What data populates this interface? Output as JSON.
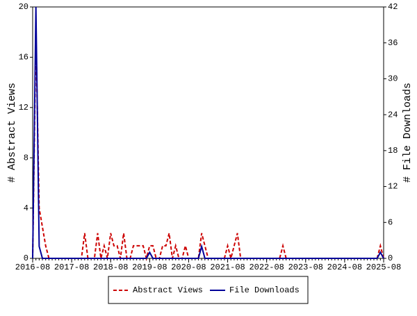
{
  "chart_data": {
    "type": "line",
    "x": [
      "2016-08",
      "2016-09",
      "2016-10",
      "2016-11",
      "2016-12",
      "2017-01",
      "2017-02",
      "2017-03",
      "2017-04",
      "2017-05",
      "2017-06",
      "2017-07",
      "2017-08",
      "2017-09",
      "2017-10",
      "2017-11",
      "2017-12",
      "2018-01",
      "2018-02",
      "2018-03",
      "2018-04",
      "2018-05",
      "2018-06",
      "2018-07",
      "2018-08",
      "2018-09",
      "2018-10",
      "2018-11",
      "2018-12",
      "2019-01",
      "2019-02",
      "2019-03",
      "2019-04",
      "2019-05",
      "2019-06",
      "2019-07",
      "2019-08",
      "2019-09",
      "2019-10",
      "2019-11",
      "2019-12",
      "2020-01",
      "2020-02",
      "2020-03",
      "2020-04",
      "2020-05",
      "2020-06",
      "2020-07",
      "2020-08",
      "2020-09",
      "2020-10",
      "2020-11",
      "2020-12",
      "2021-01",
      "2021-02",
      "2021-03",
      "2021-04",
      "2021-05",
      "2021-06",
      "2021-07",
      "2021-08",
      "2021-09",
      "2021-10",
      "2021-11",
      "2021-12",
      "2022-01",
      "2022-02",
      "2022-03",
      "2022-04",
      "2022-05",
      "2022-06",
      "2022-07",
      "2022-08",
      "2022-09",
      "2022-10",
      "2022-11",
      "2022-12",
      "2023-01",
      "2023-02",
      "2023-03",
      "2023-04",
      "2023-05",
      "2023-06",
      "2023-07",
      "2023-08",
      "2023-09",
      "2023-10",
      "2023-11",
      "2023-12",
      "2024-01",
      "2024-02",
      "2024-03",
      "2024-04",
      "2024-05",
      "2024-06",
      "2024-07",
      "2024-08",
      "2024-09",
      "2024-10",
      "2024-11",
      "2024-12",
      "2025-01",
      "2025-02",
      "2025-03",
      "2025-04",
      "2025-05",
      "2025-06",
      "2025-07",
      "2025-08"
    ],
    "xticks": [
      "2016-08",
      "2017-08",
      "2018-08",
      "2019-08",
      "2020-08",
      "2021-08",
      "2022-08",
      "2023-08",
      "2024-08",
      "2025-08"
    ],
    "ylabel": "# Abstract Views",
    "y2label": "# File Downloads",
    "ylim": [
      0,
      20
    ],
    "yticks": [
      0,
      4,
      8,
      12,
      16,
      20
    ],
    "y2lim": [
      0,
      42
    ],
    "y2ticks": [
      0,
      6,
      12,
      18,
      24,
      30,
      36,
      42
    ],
    "series": [
      {
        "name": "Abstract Views",
        "color": "#cc0000",
        "dashed": true,
        "values": [
          0,
          18,
          4,
          2.5,
          1,
          0,
          0,
          0,
          0,
          0,
          0,
          0,
          0,
          0,
          0,
          0,
          2,
          0,
          0,
          0,
          2,
          0,
          1,
          0,
          2,
          1,
          1,
          0,
          2,
          0,
          0,
          1,
          1,
          1,
          1,
          0,
          1,
          1,
          0,
          0,
          1,
          1,
          2,
          0,
          1,
          0,
          0,
          1,
          0,
          0,
          0,
          0,
          2,
          1,
          0,
          0,
          0,
          0,
          0,
          0,
          1,
          0,
          1,
          2,
          0,
          0,
          0,
          0,
          0,
          0,
          0,
          0,
          0,
          0,
          0,
          0,
          0,
          1,
          0,
          0,
          0,
          0,
          0,
          0,
          0,
          0,
          0,
          0,
          0,
          0,
          0,
          0,
          0,
          0,
          0,
          0,
          0,
          0,
          0,
          0,
          0,
          0,
          0,
          0,
          0,
          0,
          0,
          1,
          0
        ]
      },
      {
        "name": "File Downloads",
        "color": "#000099",
        "axis": "y2",
        "values": [
          0,
          42,
          2,
          0,
          0,
          0,
          0,
          0,
          0,
          0,
          0,
          0,
          0,
          0,
          0,
          0,
          0,
          0,
          0,
          0,
          0,
          0,
          0,
          0,
          0,
          0,
          0,
          0,
          0,
          0,
          0,
          0,
          0,
          0,
          0,
          0,
          1,
          0,
          0,
          0,
          0,
          0,
          0,
          0,
          0,
          0,
          0,
          0,
          0,
          0,
          0,
          0,
          2,
          0,
          0,
          0,
          0,
          0,
          0,
          0,
          0,
          0,
          0,
          0,
          0,
          0,
          0,
          0,
          0,
          0,
          0,
          0,
          0,
          0,
          0,
          0,
          0,
          0,
          0,
          0,
          0,
          0,
          0,
          0,
          0,
          0,
          0,
          0,
          0,
          0,
          0,
          0,
          0,
          0,
          0,
          0,
          0,
          0,
          0,
          0,
          0,
          0,
          0,
          0,
          0,
          0,
          0,
          1,
          0
        ]
      }
    ]
  }
}
